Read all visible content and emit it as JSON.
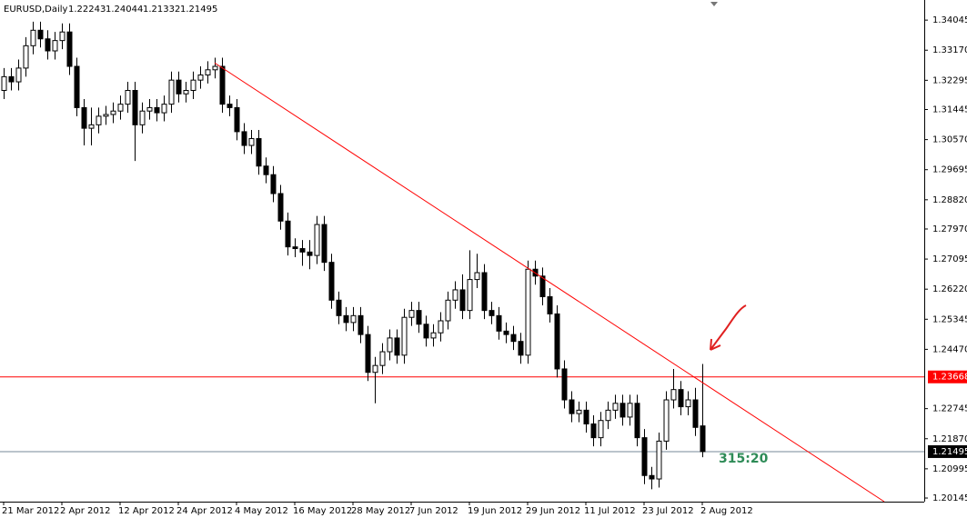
{
  "chart_data": {
    "type": "candlestick",
    "title": "EURUSD,Daily",
    "categories": [
      "21 Mar 2012",
      null,
      null,
      null,
      null,
      null,
      null,
      null,
      "2 Apr 2012",
      null,
      null,
      null,
      null,
      null,
      null,
      null,
      "12 Apr 2012",
      null,
      null,
      null,
      null,
      null,
      null,
      null,
      "24 Apr 2012",
      null,
      null,
      null,
      null,
      null,
      null,
      null,
      "4 May 2012",
      null,
      null,
      null,
      null,
      null,
      null,
      null,
      "16 May 2012",
      null,
      null,
      null,
      null,
      null,
      null,
      null,
      "28 May 2012",
      null,
      null,
      null,
      null,
      null,
      null,
      null,
      "7 Jun 2012",
      null,
      null,
      null,
      null,
      null,
      null,
      null,
      "19 Jun 2012",
      null,
      null,
      null,
      null,
      null,
      null,
      null,
      "29 Jun 2012",
      null,
      null,
      null,
      null,
      null,
      null,
      null,
      "11 Jul 2012",
      null,
      null,
      null,
      null,
      null,
      null,
      null,
      "23 Jul 2012",
      null,
      null,
      null,
      null,
      null,
      null,
      null,
      "2 Aug 2012"
    ],
    "open": [
      1.32,
      1.324,
      1.3225,
      1.3265,
      1.333,
      1.3375,
      1.335,
      1.3315,
      1.3345,
      1.337,
      1.327,
      1.315,
      1.309,
      1.31,
      1.3125,
      1.313,
      1.314,
      1.316,
      1.32,
      1.31,
      1.314,
      1.315,
      1.3135,
      1.316,
      1.323,
      1.319,
      1.32,
      1.323,
      1.3245,
      1.326,
      1.327,
      1.316,
      1.315,
      1.308,
      1.304,
      1.306,
      1.298,
      1.2955,
      1.29,
      1.282,
      1.2745,
      1.274,
      1.273,
      1.272,
      1.281,
      1.27,
      1.259,
      1.2545,
      1.2525,
      1.2545,
      1.249,
      1.238,
      1.24,
      1.244,
      1.248,
      1.243,
      1.254,
      1.256,
      1.252,
      1.248,
      1.2495,
      1.253,
      1.259,
      1.262,
      1.256,
      1.265,
      1.267,
      1.256,
      1.2545,
      1.25,
      1.249,
      1.247,
      1.243,
      1.268,
      1.266,
      1.26,
      1.255,
      1.239,
      1.23,
      1.226,
      1.227,
      1.223,
      1.219,
      1.224,
      1.227,
      1.229,
      1.225,
      1.229,
      1.219,
      1.208,
      1.207,
      1.218,
      1.23,
      1.233,
      1.228,
      1.23,
      1.22243
    ],
    "high": [
      1.3265,
      1.3265,
      1.329,
      1.3355,
      1.34,
      1.34,
      1.3375,
      1.337,
      1.3395,
      1.3395,
      1.3295,
      1.3175,
      1.315,
      1.315,
      1.3155,
      1.3165,
      1.3185,
      1.3225,
      1.3225,
      1.3165,
      1.3175,
      1.3175,
      1.3185,
      1.3255,
      1.3255,
      1.3225,
      1.3255,
      1.327,
      1.3285,
      1.3295,
      1.3295,
      1.3185,
      1.3175,
      1.3105,
      1.3085,
      1.3085,
      1.3005,
      1.298,
      1.2925,
      1.2845,
      1.277,
      1.2765,
      1.2765,
      1.2835,
      1.2835,
      1.2725,
      1.2615,
      1.257,
      1.257,
      1.257,
      1.2515,
      1.2425,
      1.2465,
      1.2505,
      1.2505,
      1.2565,
      1.2585,
      1.2585,
      1.2545,
      1.252,
      1.2555,
      1.2615,
      1.2645,
      1.2665,
      1.2735,
      1.2725,
      1.2695,
      1.2585,
      1.257,
      1.2525,
      1.2515,
      1.2495,
      1.2705,
      1.2705,
      1.2685,
      1.2625,
      1.2575,
      1.2415,
      1.2325,
      1.2295,
      1.2295,
      1.2255,
      1.2265,
      1.2295,
      1.2315,
      1.2315,
      1.2315,
      1.2315,
      1.2215,
      1.2105,
      1.2205,
      1.2325,
      1.239,
      1.2355,
      1.2325,
      1.2335,
      1.24044
    ],
    "low": [
      1.3175,
      1.32,
      1.32,
      1.324,
      1.3305,
      1.3325,
      1.329,
      1.329,
      1.332,
      1.3245,
      1.3125,
      1.304,
      1.304,
      1.3075,
      1.31,
      1.3105,
      1.3115,
      1.3135,
      1.2995,
      1.3075,
      1.3115,
      1.311,
      1.311,
      1.3135,
      1.3165,
      1.3165,
      1.3175,
      1.3205,
      1.322,
      1.3235,
      1.3135,
      1.3125,
      1.3055,
      1.3015,
      1.3015,
      1.2955,
      1.293,
      1.2875,
      1.2795,
      1.272,
      1.2715,
      1.269,
      1.268,
      1.2695,
      1.2675,
      1.2565,
      1.252,
      1.25,
      1.25,
      1.2465,
      1.2355,
      1.229,
      1.2375,
      1.2415,
      1.2405,
      1.2405,
      1.2515,
      1.2495,
      1.2455,
      1.2455,
      1.247,
      1.2505,
      1.2565,
      1.2535,
      1.2535,
      1.2625,
      1.2535,
      1.252,
      1.2475,
      1.2465,
      1.2445,
      1.2405,
      1.2405,
      1.2635,
      1.2575,
      1.2525,
      1.2365,
      1.2275,
      1.2235,
      1.2235,
      1.2205,
      1.2165,
      1.2165,
      1.2215,
      1.2245,
      1.2225,
      1.2225,
      1.2165,
      1.2055,
      1.204,
      1.2045,
      1.2155,
      1.2275,
      1.2255,
      1.2255,
      1.2195,
      1.21332
    ],
    "close": [
      1.324,
      1.3225,
      1.3265,
      1.333,
      1.3375,
      1.335,
      1.3315,
      1.3345,
      1.337,
      1.327,
      1.315,
      1.309,
      1.31,
      1.3125,
      1.313,
      1.314,
      1.316,
      1.32,
      1.31,
      1.314,
      1.315,
      1.3135,
      1.316,
      1.323,
      1.319,
      1.32,
      1.323,
      1.3245,
      1.326,
      1.327,
      1.316,
      1.315,
      1.308,
      1.304,
      1.306,
      1.298,
      1.2955,
      1.29,
      1.282,
      1.2745,
      1.274,
      1.273,
      1.272,
      1.281,
      1.27,
      1.259,
      1.2545,
      1.2525,
      1.2545,
      1.249,
      1.238,
      1.24,
      1.244,
      1.248,
      1.243,
      1.254,
      1.256,
      1.252,
      1.248,
      1.2495,
      1.253,
      1.259,
      1.262,
      1.256,
      1.265,
      1.267,
      1.256,
      1.2545,
      1.25,
      1.249,
      1.247,
      1.243,
      1.268,
      1.266,
      1.26,
      1.255,
      1.239,
      1.23,
      1.226,
      1.227,
      1.223,
      1.219,
      1.224,
      1.227,
      1.229,
      1.225,
      1.229,
      1.219,
      1.208,
      1.207,
      1.218,
      1.23,
      1.233,
      1.228,
      1.23,
      1.222,
      1.21495
    ],
    "ylim": [
      1.2004,
      1.3463
    ],
    "yticks": [
      1.34045,
      {
        "value": 1.3317,
        "label": "1.33170"
      },
      1.32295,
      1.31445,
      {
        "value": 1.3057,
        "label": "1.30570"
      },
      1.29695,
      {
        "value": 1.2882,
        "label": "1.28820"
      },
      {
        "value": 1.2797,
        "label": "1.27970"
      },
      1.27095,
      {
        "value": 1.2622,
        "label": "1.26220"
      },
      1.25345,
      {
        "value": 1.2447,
        "label": "1.24470"
      },
      1.22745,
      {
        "value": 1.2187,
        "label": "1.21870"
      },
      1.20995,
      1.20145
    ],
    "hline": {
      "value": 1.23668,
      "color": "#ff0000"
    },
    "trendline": {
      "x": [
        29,
        121
      ],
      "y": [
        1.328,
        1.2004
      ],
      "color": "#ff0000"
    },
    "annotation": "315:20"
  }
}
